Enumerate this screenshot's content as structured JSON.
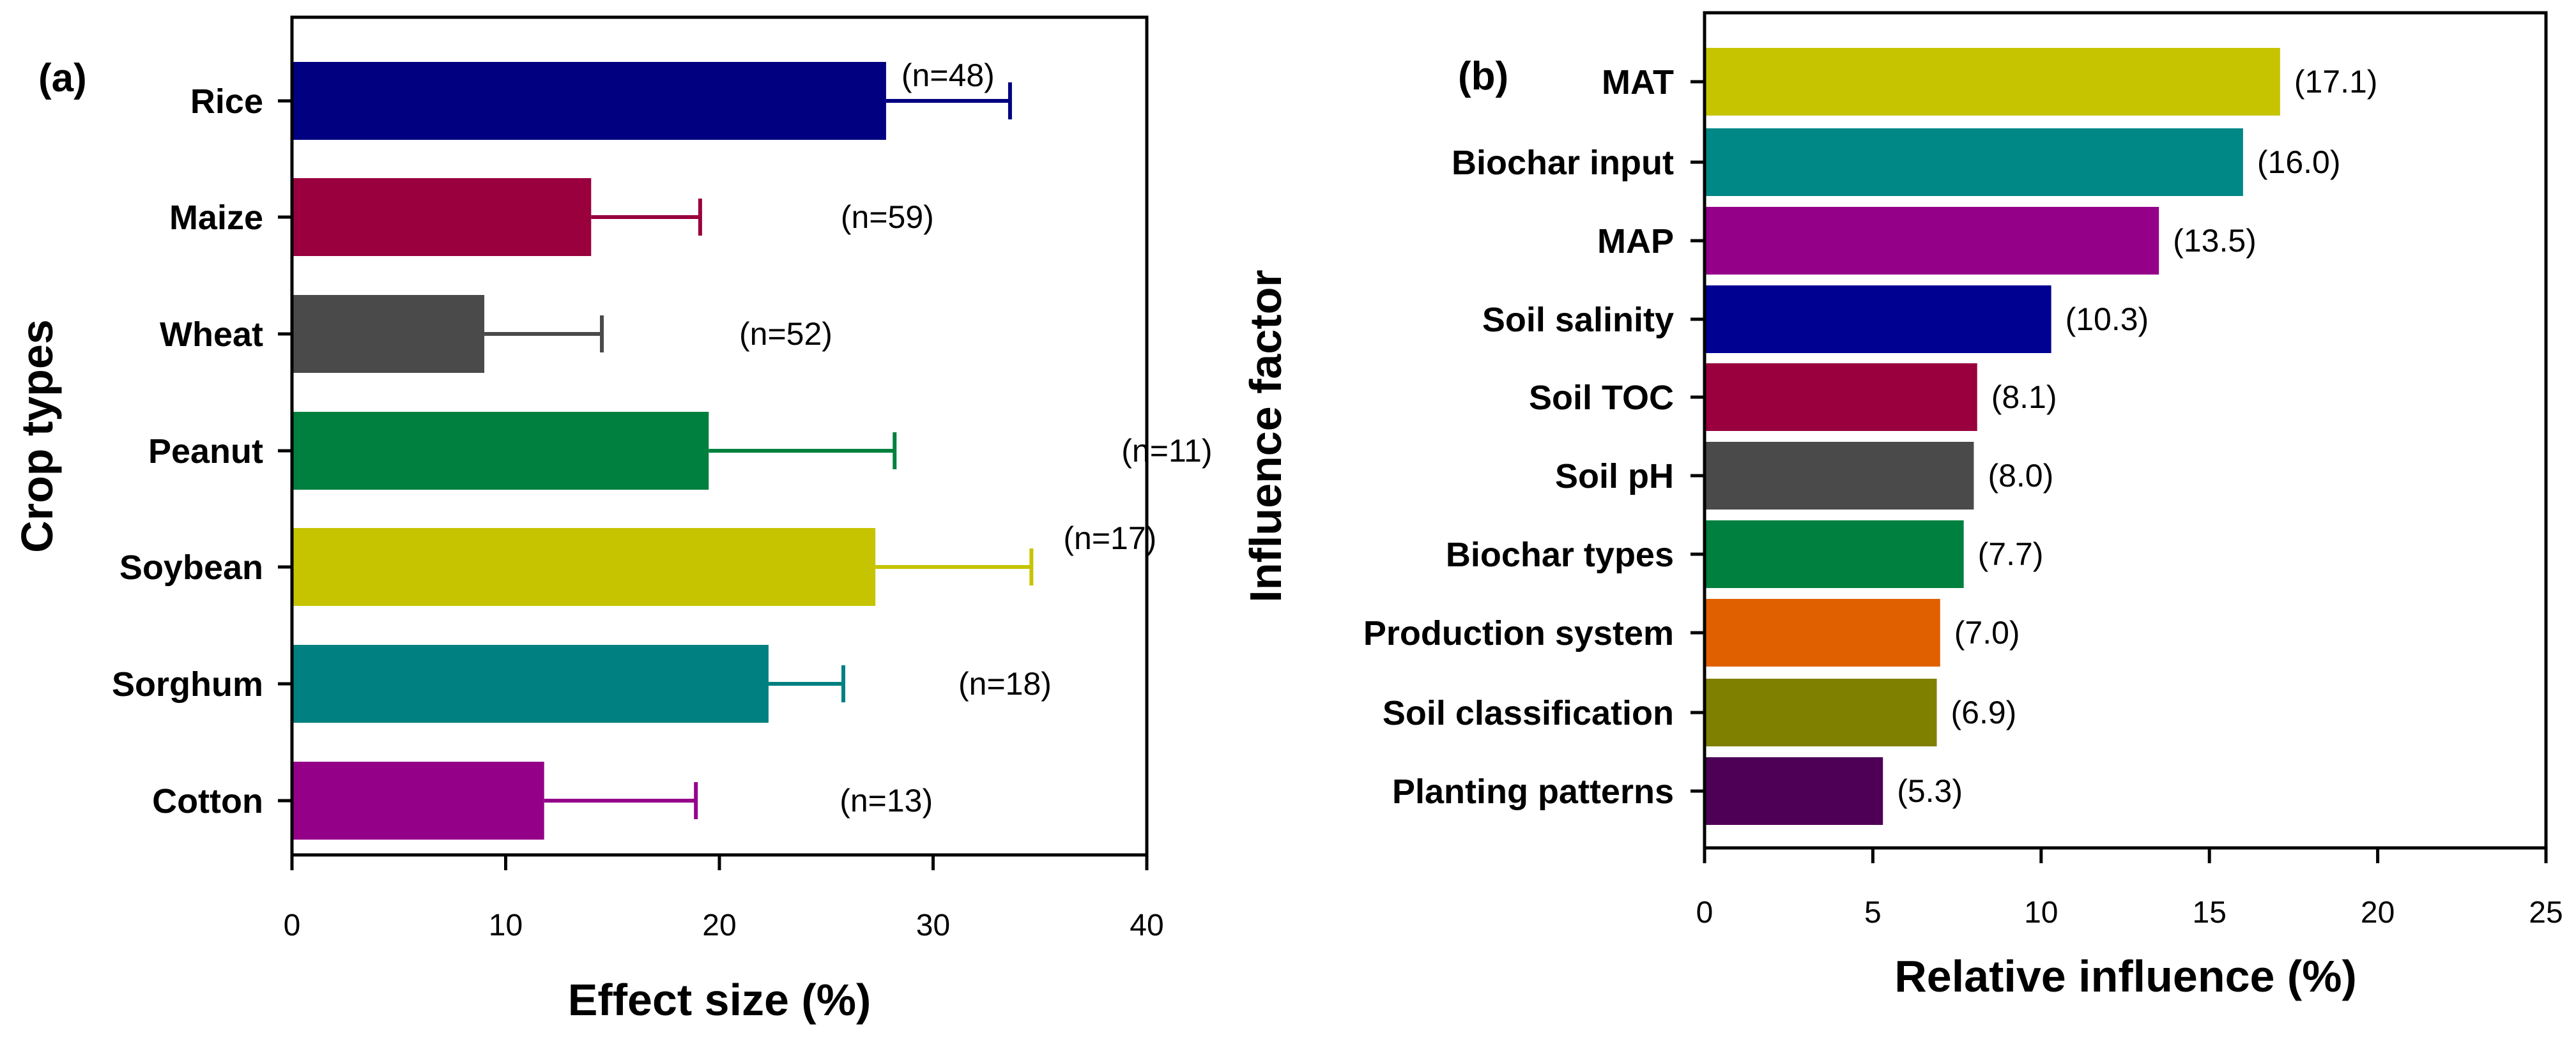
{
  "chart_data": [
    {
      "panel": "(a)",
      "type": "bar",
      "orientation": "horizontal",
      "xlabel": "Effect size (%)",
      "ylabel": "Crop types",
      "xlim": [
        0,
        40
      ],
      "xticks": [
        "0",
        "10",
        "20",
        "30",
        "40"
      ],
      "categories": [
        "Rice",
        "Maize",
        "Wheat",
        "Peanut",
        "Soybean",
        "Sorghum",
        "Cotton"
      ],
      "values": [
        27.8,
        14.0,
        9.0,
        19.5,
        27.3,
        22.3,
        11.8
      ],
      "error_upper": [
        33.6,
        19.1,
        14.5,
        28.2,
        34.6,
        25.8,
        18.9
      ],
      "labels": [
        "(n=48)",
        "(n=59)",
        "(n=52)",
        "(n=11)",
        "(n=17)",
        "(n=18)",
        "(n=13)"
      ],
      "colors": [
        "#000080",
        "#99003d",
        "#4a4a4a",
        "#00803e",
        "#c6c400",
        "#008080",
        "#950089"
      ],
      "grid": false
    },
    {
      "panel": "(b)",
      "type": "bar",
      "orientation": "horizontal",
      "xlabel": "Relative influence (%)",
      "ylabel": "Influence factor",
      "xlim": [
        0,
        25
      ],
      "xticks": [
        "0",
        "5",
        "10",
        "15",
        "20",
        "25"
      ],
      "categories": [
        "MAT",
        "Biochar input",
        "MAP",
        "Soil salinity",
        "Soil TOC",
        "Soil pH",
        "Biochar types",
        "Production system",
        "Soil classification",
        "Planting patterns"
      ],
      "values": [
        17.1,
        16.0,
        13.5,
        10.3,
        8.1,
        8.0,
        7.7,
        7.0,
        6.9,
        5.3
      ],
      "labels": [
        "(17.1)",
        "(16.0)",
        "(13.5)",
        "(10.3)",
        "(8.1)",
        "(8.0)",
        "(7.7)",
        "(7.0)",
        "(6.9)",
        "(5.3)"
      ],
      "colors": [
        "#c6c400",
        "#008886",
        "#950089",
        "#000091",
        "#99003d",
        "#4a4a4a",
        "#00803e",
        "#e06000",
        "#808000",
        "#4d0055"
      ],
      "grid": false
    }
  ]
}
